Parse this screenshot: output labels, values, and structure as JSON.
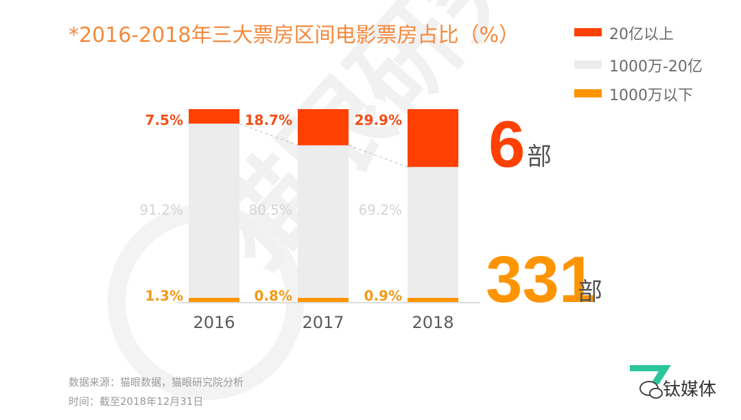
{
  "chart_data": {
    "type": "bar",
    "stacked": true,
    "title": "*2016-2018年三大票房区间电影票房占比（%）",
    "categories": [
      "2016",
      "2017",
      "2018"
    ],
    "series": [
      {
        "name": "1000万以下",
        "values": [
          1.3,
          0.8,
          0.9
        ],
        "labels": [
          "1.3%",
          "0.8%",
          "0.9%"
        ]
      },
      {
        "name": "1000万-20亿",
        "values": [
          91.2,
          80.5,
          69.2
        ],
        "labels": [
          "91.2%",
          "80.5%",
          "69.2%"
        ]
      },
      {
        "name": "20亿以上",
        "values": [
          7.5,
          18.7,
          29.9
        ],
        "labels": [
          "7.5%",
          "18.7%",
          "29.9%"
        ]
      }
    ],
    "ylim": [
      0,
      100
    ],
    "legend": "top-right",
    "annotations": {
      "top_count": "6",
      "top_unit": "部",
      "bottom_count": "331",
      "bottom_unit": "部"
    }
  },
  "colors": {
    "over_2b": "#fe4001",
    "mid": "#ececec",
    "under_10m": "#fe9400",
    "title": "#f5883c",
    "label_top": "#f14e19",
    "label_bottom": "#f49a16",
    "label_mid": "#d4d4d4",
    "axis_text": "#5a5a5a",
    "source_text": "#9a9a9a",
    "watermark": "#f0f0f0"
  },
  "source": {
    "line1": "数据来源：猫眼数据，猫眼研究院分析",
    "line2": "时间：截至2018年12月31日"
  },
  "watermark": "猫眼研究",
  "logo": {
    "text": "钛媒体",
    "icon": "wechat-icon"
  }
}
